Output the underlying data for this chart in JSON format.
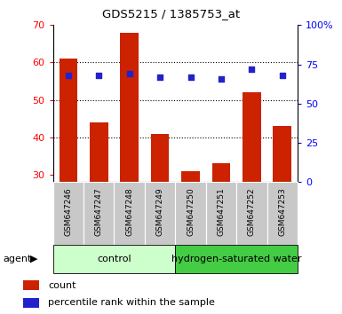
{
  "title": "GDS5215 / 1385753_at",
  "categories": [
    "GSM647246",
    "GSM647247",
    "GSM647248",
    "GSM647249",
    "GSM647250",
    "GSM647251",
    "GSM647252",
    "GSM647253"
  ],
  "bar_values": [
    61,
    44,
    68,
    41,
    31,
    33,
    52,
    43
  ],
  "percentile_values": [
    68,
    68,
    69,
    67,
    67,
    66,
    72,
    68
  ],
  "bar_color": "#cc2200",
  "percentile_color": "#2222cc",
  "ylim_left": [
    28,
    70
  ],
  "ylim_right": [
    0,
    100
  ],
  "yticks_left": [
    30,
    40,
    50,
    60,
    70
  ],
  "yticks_right": [
    0,
    25,
    50,
    75,
    100
  ],
  "yticklabels_right": [
    "0",
    "25",
    "50",
    "75",
    "100%"
  ],
  "control_label": "control",
  "treatment_label": "hydrogen-saturated water",
  "agent_label": "agent",
  "legend_count": "count",
  "legend_percentile": "percentile rank within the sample",
  "control_color": "#ccffcc",
  "treatment_color": "#44cc44",
  "ticklabel_bg": "#c8c8c8",
  "grid_yticks": [
    40,
    50,
    60
  ]
}
